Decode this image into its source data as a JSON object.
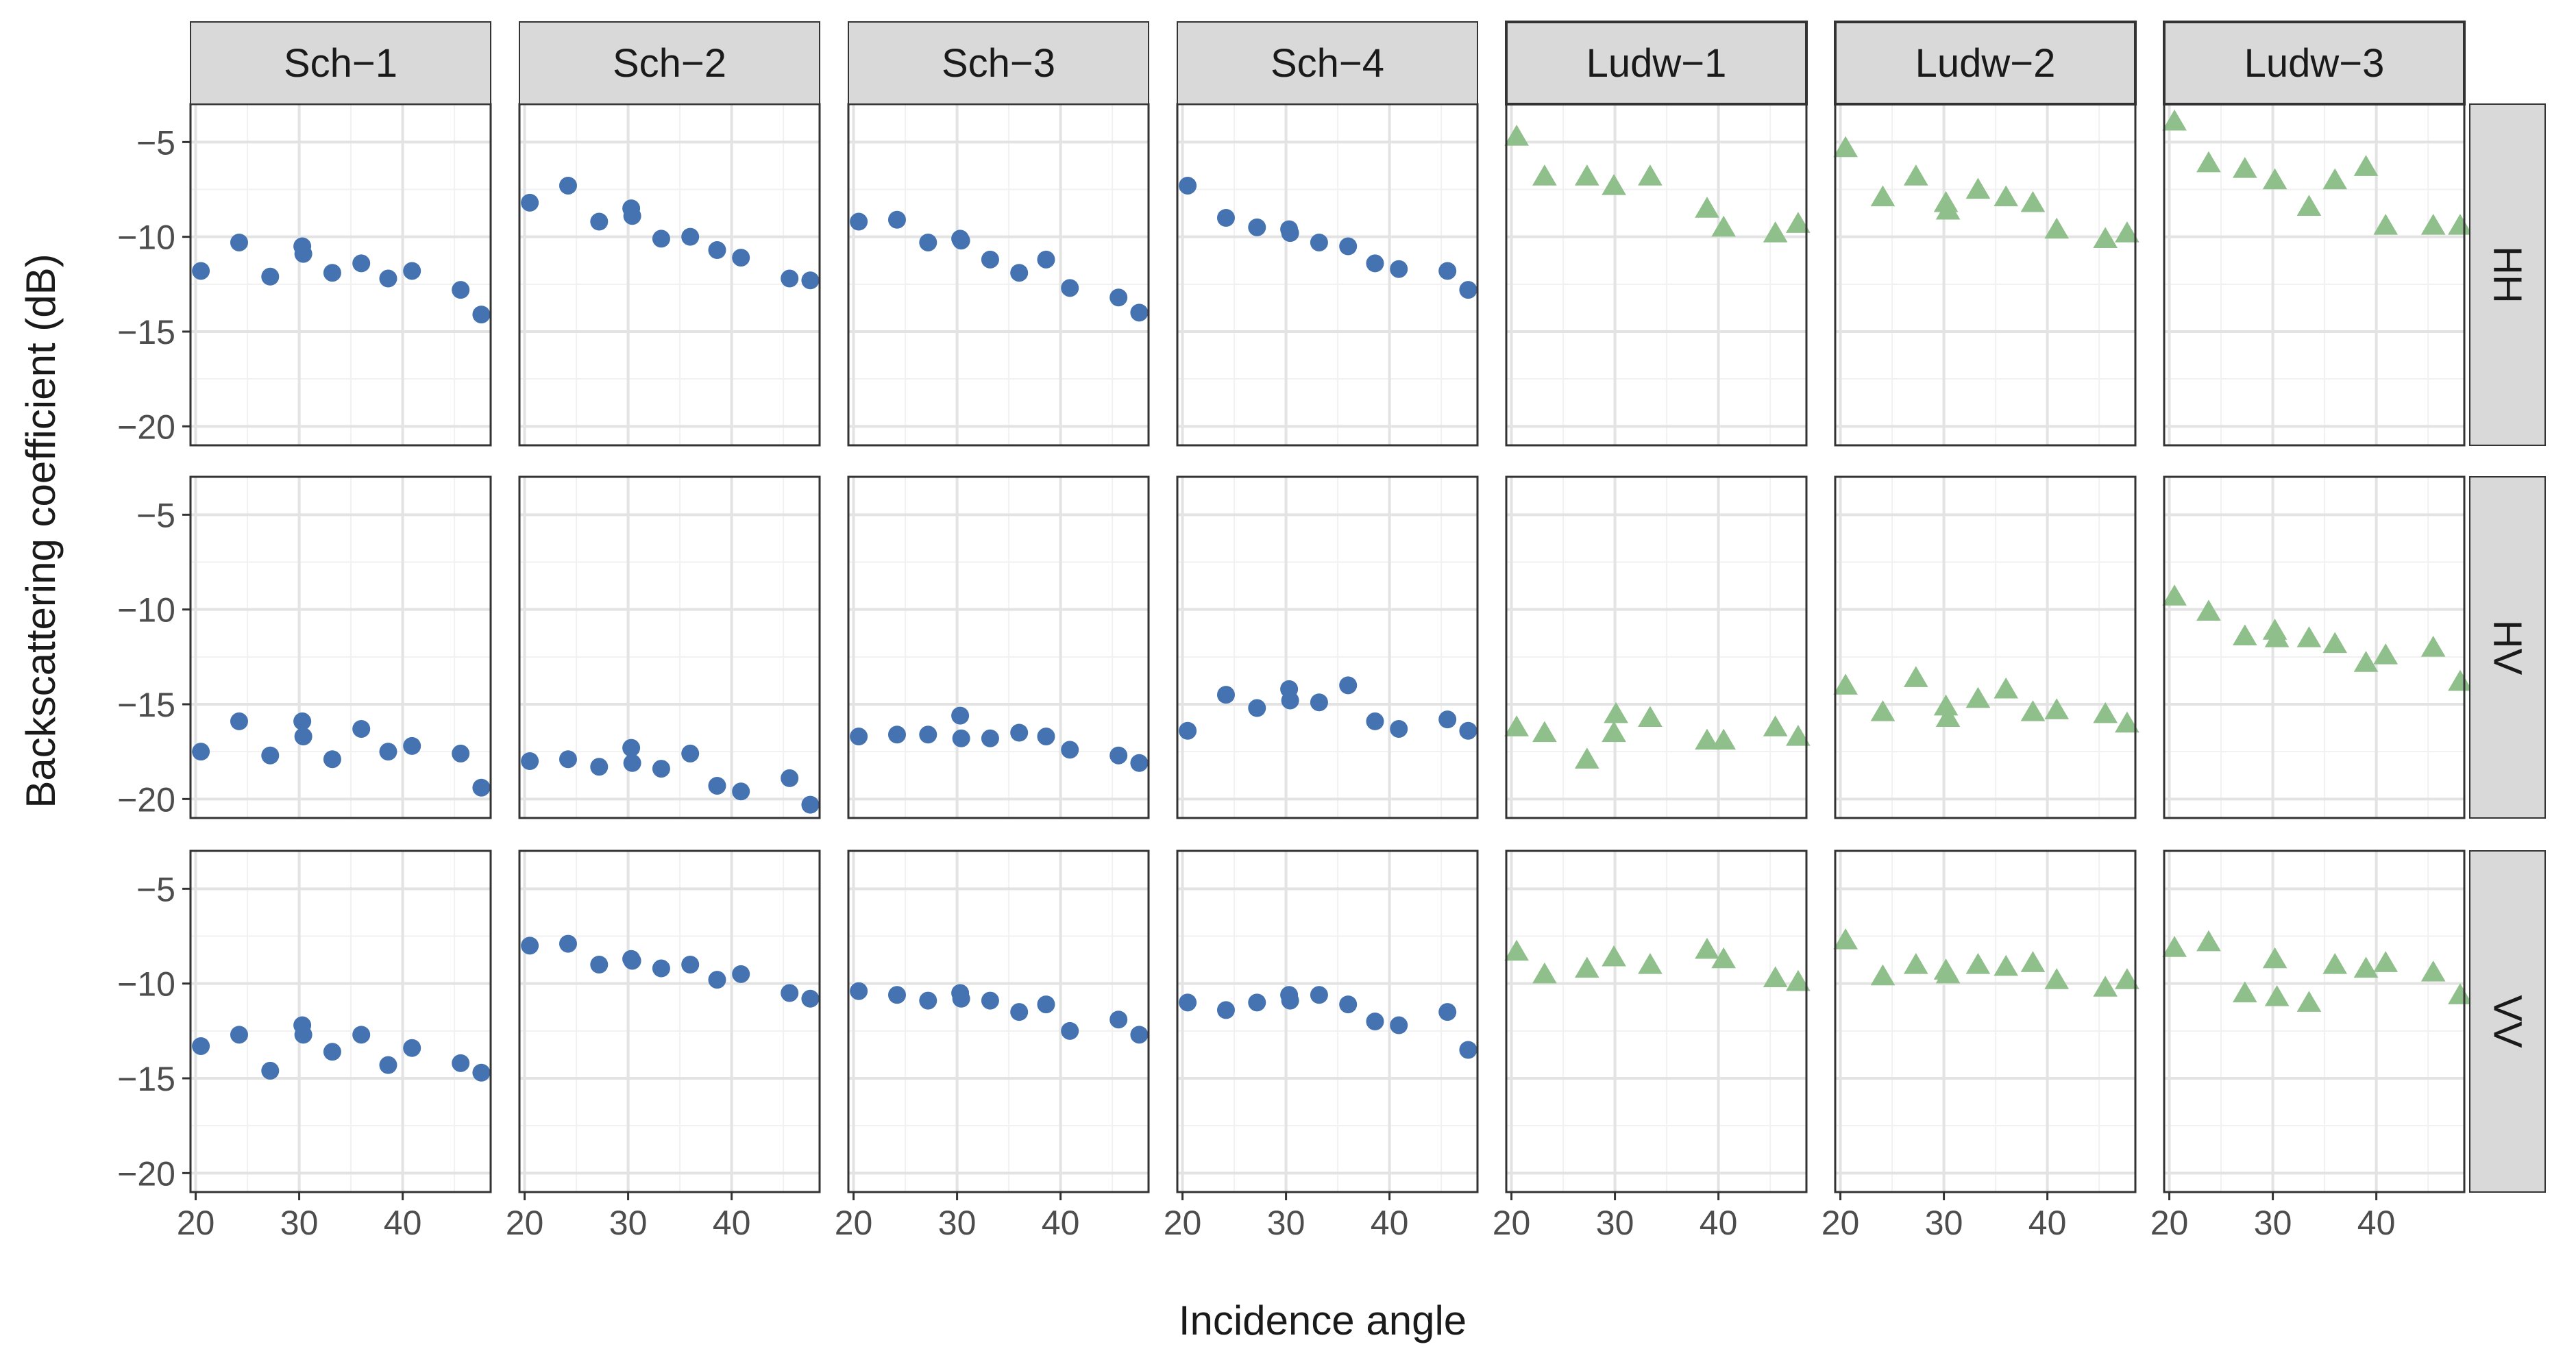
{
  "colors": {
    "sch_point": "#4572B0",
    "ludw_point": "#8FBF8A",
    "grid_major": "#E3E3E3",
    "grid_minor": "#F1F1F1",
    "strip_fill": "#D9D9D9",
    "panel_border": "#333333",
    "axis_text": "#4D4D4D",
    "title_text": "#1A1A1A"
  },
  "chart_data": {
    "type": "scatter",
    "title": "",
    "xlabel": "Incidence angle",
    "ylabel": "Backscattering coefficient (dB)",
    "xlim": [
      19.5,
      48.5
    ],
    "ylim": [
      -21,
      -3
    ],
    "x_ticks": [
      20,
      30,
      40
    ],
    "y_ticks": [
      -5,
      -10,
      -15,
      -20
    ],
    "y_tick_labels": [
      "−5",
      "−10",
      "−15",
      "−20"
    ],
    "x_tick_labels": [
      "20",
      "30",
      "40"
    ],
    "polarizations": [
      "HH",
      "HV",
      "VV"
    ],
    "sites": [
      {
        "name": "Sch−1",
        "marker": "circle",
        "series": {
          "HH": [
            [
              20.5,
              -11.8
            ],
            [
              24.2,
              -10.3
            ],
            [
              27.2,
              -12.1
            ],
            [
              30.3,
              -10.5
            ],
            [
              30.4,
              -10.9
            ],
            [
              33.2,
              -11.9
            ],
            [
              36.0,
              -11.4
            ],
            [
              38.6,
              -12.2
            ],
            [
              40.9,
              -11.8
            ],
            [
              45.6,
              -12.8
            ],
            [
              47.6,
              -14.1
            ]
          ],
          "HV": [
            [
              20.5,
              -17.5
            ],
            [
              24.2,
              -15.9
            ],
            [
              27.2,
              -17.7
            ],
            [
              30.3,
              -15.9
            ],
            [
              30.4,
              -16.7
            ],
            [
              33.2,
              -17.9
            ],
            [
              36.0,
              -16.3
            ],
            [
              38.6,
              -17.5
            ],
            [
              40.9,
              -17.2
            ],
            [
              45.6,
              -17.6
            ],
            [
              47.6,
              -19.4
            ]
          ],
          "VV": [
            [
              20.5,
              -13.3
            ],
            [
              24.2,
              -12.7
            ],
            [
              27.2,
              -14.6
            ],
            [
              30.3,
              -12.2
            ],
            [
              30.4,
              -12.7
            ],
            [
              33.2,
              -13.6
            ],
            [
              36.0,
              -12.7
            ],
            [
              38.6,
              -14.3
            ],
            [
              40.9,
              -13.4
            ],
            [
              45.6,
              -14.2
            ],
            [
              47.6,
              -14.7
            ]
          ]
        }
      },
      {
        "name": "Sch−2",
        "marker": "circle",
        "series": {
          "HH": [
            [
              20.5,
              -8.2
            ],
            [
              24.2,
              -7.3
            ],
            [
              27.2,
              -9.2
            ],
            [
              30.3,
              -8.5
            ],
            [
              30.4,
              -8.9
            ],
            [
              33.2,
              -10.1
            ],
            [
              36.0,
              -10.0
            ],
            [
              38.6,
              -10.7
            ],
            [
              40.9,
              -11.1
            ],
            [
              45.6,
              -12.2
            ],
            [
              47.6,
              -12.3
            ]
          ],
          "HV": [
            [
              20.5,
              -18.0
            ],
            [
              24.2,
              -17.9
            ],
            [
              27.2,
              -18.3
            ],
            [
              30.3,
              -17.3
            ],
            [
              30.4,
              -18.1
            ],
            [
              33.2,
              -18.4
            ],
            [
              36.0,
              -17.6
            ],
            [
              38.6,
              -19.3
            ],
            [
              40.9,
              -19.6
            ],
            [
              45.6,
              -18.9
            ],
            [
              47.6,
              -20.3
            ]
          ],
          "VV": [
            [
              20.5,
              -8.0
            ],
            [
              24.2,
              -7.9
            ],
            [
              27.2,
              -9.0
            ],
            [
              30.3,
              -8.7
            ],
            [
              30.4,
              -8.8
            ],
            [
              33.2,
              -9.2
            ],
            [
              36.0,
              -9.0
            ],
            [
              38.6,
              -9.8
            ],
            [
              40.9,
              -9.5
            ],
            [
              45.6,
              -10.5
            ],
            [
              47.6,
              -10.8
            ]
          ]
        }
      },
      {
        "name": "Sch−3",
        "marker": "circle",
        "series": {
          "HH": [
            [
              20.5,
              -9.2
            ],
            [
              24.2,
              -9.1
            ],
            [
              27.2,
              -10.3
            ],
            [
              30.3,
              -10.1
            ],
            [
              30.4,
              -10.2
            ],
            [
              33.2,
              -11.2
            ],
            [
              36.0,
              -11.9
            ],
            [
              38.6,
              -11.2
            ],
            [
              40.9,
              -12.7
            ],
            [
              45.6,
              -13.2
            ],
            [
              47.6,
              -14.0
            ]
          ],
          "HV": [
            [
              20.5,
              -16.7
            ],
            [
              24.2,
              -16.6
            ],
            [
              27.2,
              -16.6
            ],
            [
              30.3,
              -15.6
            ],
            [
              30.4,
              -16.8
            ],
            [
              33.2,
              -16.8
            ],
            [
              36.0,
              -16.5
            ],
            [
              38.6,
              -16.7
            ],
            [
              40.9,
              -17.4
            ],
            [
              45.6,
              -17.7
            ],
            [
              47.6,
              -18.1
            ]
          ],
          "VV": [
            [
              20.5,
              -10.4
            ],
            [
              24.2,
              -10.6
            ],
            [
              27.2,
              -10.9
            ],
            [
              30.3,
              -10.5
            ],
            [
              30.4,
              -10.8
            ],
            [
              33.2,
              -10.9
            ],
            [
              36.0,
              -11.5
            ],
            [
              38.6,
              -11.1
            ],
            [
              40.9,
              -12.5
            ],
            [
              45.6,
              -11.9
            ],
            [
              47.6,
              -12.7
            ]
          ]
        }
      },
      {
        "name": "Sch−4",
        "marker": "circle",
        "series": {
          "HH": [
            [
              20.5,
              -7.3
            ],
            [
              24.2,
              -9.0
            ],
            [
              27.2,
              -9.5
            ],
            [
              30.3,
              -9.6
            ],
            [
              30.4,
              -9.8
            ],
            [
              33.2,
              -10.3
            ],
            [
              36.0,
              -10.5
            ],
            [
              38.6,
              -11.4
            ],
            [
              40.9,
              -11.7
            ],
            [
              45.6,
              -11.8
            ],
            [
              47.6,
              -12.8
            ]
          ],
          "HV": [
            [
              20.5,
              -16.4
            ],
            [
              24.2,
              -14.5
            ],
            [
              27.2,
              -15.2
            ],
            [
              30.3,
              -14.2
            ],
            [
              30.4,
              -14.8
            ],
            [
              33.2,
              -14.9
            ],
            [
              36.0,
              -14.0
            ],
            [
              38.6,
              -15.9
            ],
            [
              40.9,
              -16.3
            ],
            [
              45.6,
              -15.8
            ],
            [
              47.6,
              -16.4
            ]
          ],
          "VV": [
            [
              20.5,
              -11.0
            ],
            [
              24.2,
              -11.4
            ],
            [
              27.2,
              -11.0
            ],
            [
              30.3,
              -10.6
            ],
            [
              30.4,
              -10.9
            ],
            [
              33.2,
              -10.6
            ],
            [
              36.0,
              -11.1
            ],
            [
              38.6,
              -12.0
            ],
            [
              40.9,
              -12.2
            ],
            [
              45.6,
              -11.5
            ],
            [
              47.6,
              -13.5
            ]
          ]
        }
      },
      {
        "name": "Ludw−1",
        "marker": "triangle",
        "series": {
          "HH": [
            [
              20.5,
              -4.7
            ],
            [
              23.2,
              -6.8
            ],
            [
              27.3,
              -6.8
            ],
            [
              29.9,
              -7.3
            ],
            [
              33.4,
              -6.8
            ],
            [
              38.9,
              -8.5
            ],
            [
              40.5,
              -9.5
            ],
            [
              45.5,
              -9.8
            ],
            [
              47.7,
              -9.3
            ]
          ],
          "HV": [
            [
              20.5,
              -16.2
            ],
            [
              23.2,
              -16.5
            ],
            [
              27.3,
              -17.9
            ],
            [
              29.9,
              -16.5
            ],
            [
              30.1,
              -15.5
            ],
            [
              33.4,
              -15.7
            ],
            [
              38.9,
              -16.9
            ],
            [
              40.5,
              -16.9
            ],
            [
              45.5,
              -16.2
            ],
            [
              47.7,
              -16.7
            ]
          ],
          "VV": [
            [
              20.5,
              -8.3
            ],
            [
              23.2,
              -9.5
            ],
            [
              27.3,
              -9.2
            ],
            [
              29.9,
              -8.6
            ],
            [
              33.4,
              -9.0
            ],
            [
              38.9,
              -8.2
            ],
            [
              40.5,
              -8.7
            ],
            [
              45.5,
              -9.7
            ],
            [
              47.7,
              -9.9
            ]
          ]
        }
      },
      {
        "name": "Ludw−2",
        "marker": "triangle",
        "series": {
          "HH": [
            [
              20.5,
              -5.3
            ],
            [
              24.1,
              -7.9
            ],
            [
              27.3,
              -6.8
            ],
            [
              30.2,
              -8.2
            ],
            [
              30.4,
              -8.6
            ],
            [
              33.3,
              -7.5
            ],
            [
              36.0,
              -7.9
            ],
            [
              38.6,
              -8.2
            ],
            [
              40.9,
              -9.6
            ],
            [
              45.6,
              -10.1
            ],
            [
              47.7,
              -9.8
            ]
          ],
          "HV": [
            [
              20.5,
              -14.0
            ],
            [
              24.1,
              -15.4
            ],
            [
              27.3,
              -13.6
            ],
            [
              30.2,
              -15.1
            ],
            [
              30.4,
              -15.7
            ],
            [
              33.3,
              -14.7
            ],
            [
              36.0,
              -14.2
            ],
            [
              38.6,
              -15.4
            ],
            [
              40.9,
              -15.3
            ],
            [
              45.6,
              -15.5
            ],
            [
              47.7,
              -16.0
            ]
          ],
          "VV": [
            [
              20.5,
              -7.7
            ],
            [
              24.1,
              -9.6
            ],
            [
              27.3,
              -9.0
            ],
            [
              30.2,
              -9.3
            ],
            [
              30.4,
              -9.5
            ],
            [
              33.3,
              -9.0
            ],
            [
              36.0,
              -9.1
            ],
            [
              38.6,
              -8.9
            ],
            [
              40.9,
              -9.8
            ],
            [
              45.6,
              -10.2
            ],
            [
              47.7,
              -9.8
            ]
          ]
        }
      },
      {
        "name": "Ludw−3",
        "marker": "triangle",
        "series": {
          "HH": [
            [
              20.5,
              -3.9
            ],
            [
              23.8,
              -6.1
            ],
            [
              27.3,
              -6.4
            ],
            [
              30.2,
              -7.0
            ],
            [
              33.5,
              -8.4
            ],
            [
              36.0,
              -7.0
            ],
            [
              39.0,
              -6.3
            ],
            [
              40.9,
              -9.4
            ],
            [
              45.5,
              -9.4
            ],
            [
              48.1,
              -9.4
            ]
          ],
          "HV": [
            [
              20.5,
              -9.3
            ],
            [
              23.8,
              -10.1
            ],
            [
              27.3,
              -11.4
            ],
            [
              30.2,
              -11.1
            ],
            [
              30.4,
              -11.5
            ],
            [
              33.5,
              -11.5
            ],
            [
              36.0,
              -11.8
            ],
            [
              39.0,
              -12.8
            ],
            [
              40.9,
              -12.4
            ],
            [
              45.5,
              -12.0
            ],
            [
              48.1,
              -13.8
            ]
          ],
          "VV": [
            [
              20.5,
              -8.1
            ],
            [
              23.8,
              -7.8
            ],
            [
              27.3,
              -10.5
            ],
            [
              30.2,
              -8.7
            ],
            [
              30.4,
              -10.7
            ],
            [
              33.5,
              -11.0
            ],
            [
              36.0,
              -9.0
            ],
            [
              39.0,
              -9.2
            ],
            [
              40.9,
              -8.9
            ],
            [
              45.5,
              -9.4
            ],
            [
              48.1,
              -10.6
            ]
          ]
        }
      }
    ]
  }
}
